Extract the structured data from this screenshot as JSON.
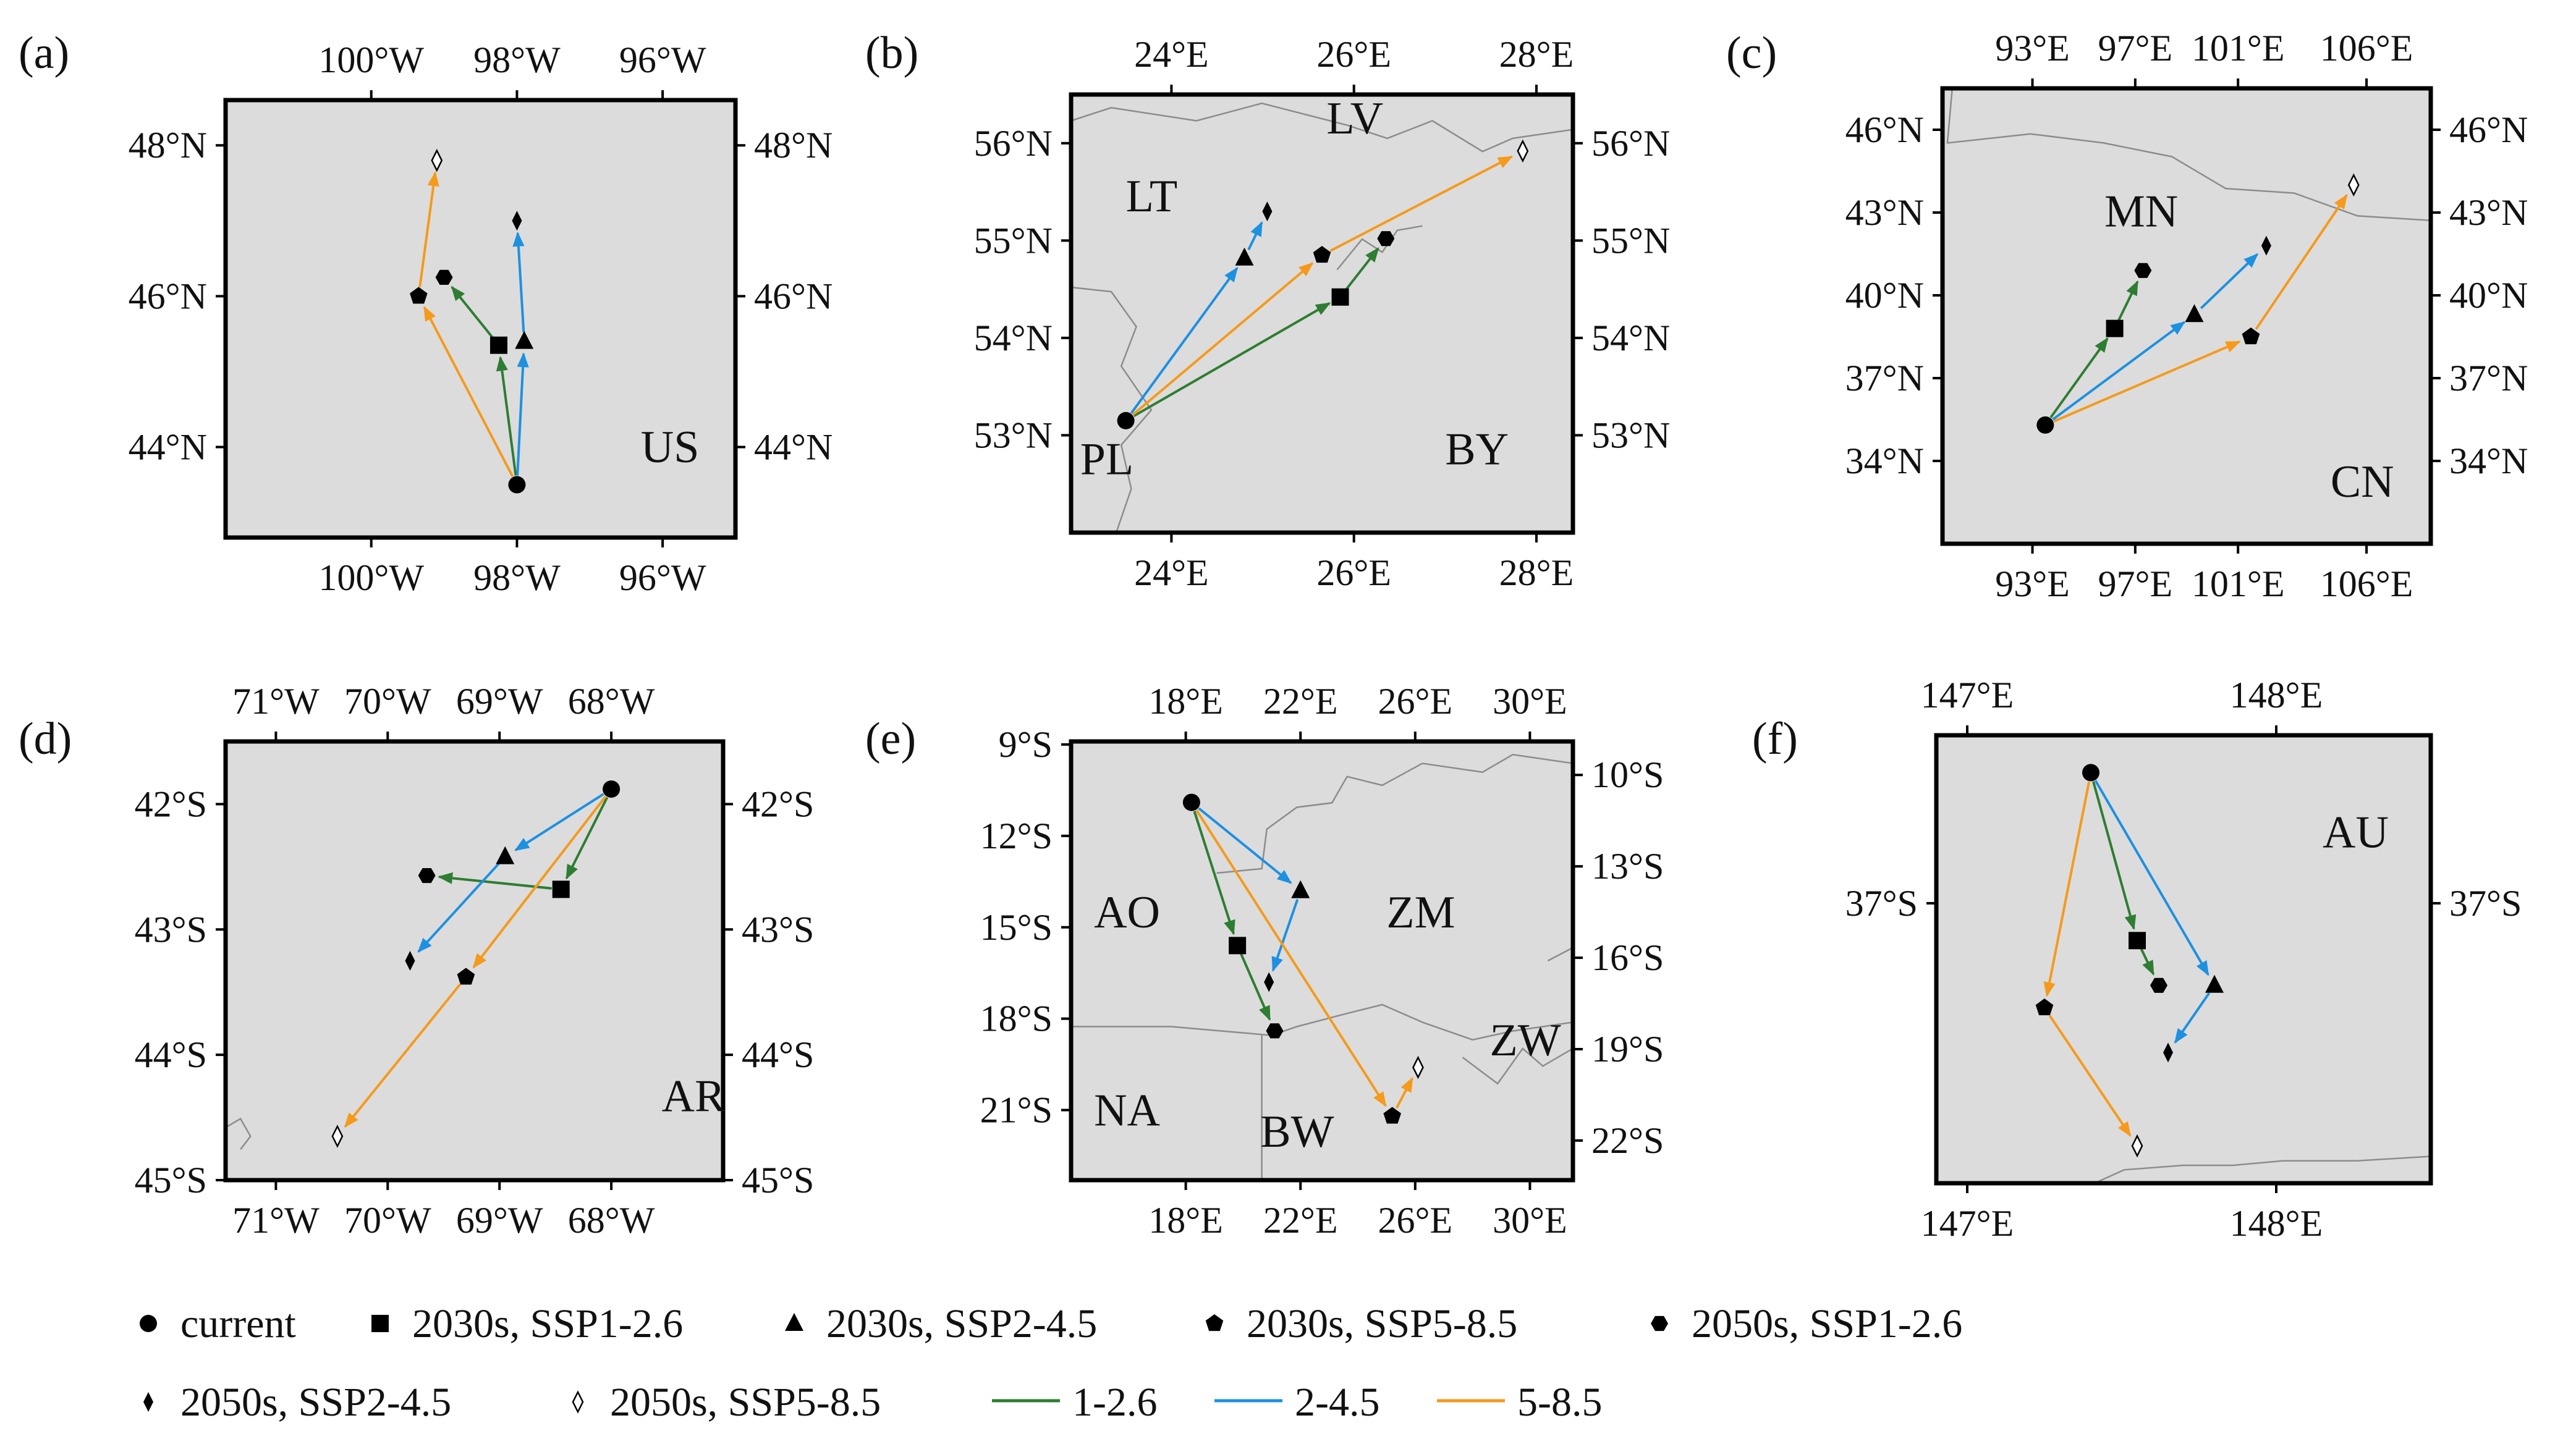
{
  "legend": {
    "items": [
      {
        "label": "current",
        "marker": "circle"
      },
      {
        "label": "2030s, SSP1-2.6",
        "marker": "square"
      },
      {
        "label": "2030s, SSP2-4.5",
        "marker": "triangle"
      },
      {
        "label": "2030s, SSP5-8.5",
        "marker": "pentagon"
      },
      {
        "label": "2050s, SSP1-2.6",
        "marker": "hexagon"
      },
      {
        "label": "2050s, SSP2-4.5",
        "marker": "thin-diamond"
      },
      {
        "label": "2050s, SSP5-8.5",
        "marker": "open-diamond"
      }
    ],
    "lines": [
      {
        "label": "1-2.6",
        "color": "#2e7d32"
      },
      {
        "label": "2-4.5",
        "color": "#1e90e0"
      },
      {
        "label": "5-8.5",
        "color": "#f59a1b"
      }
    ]
  },
  "chart_data": [
    {
      "type": "scatter",
      "panel": "(a)",
      "region": "US",
      "xlim": [
        -102,
        -95
      ],
      "ylim": [
        42.8,
        48.6
      ],
      "xticks": [
        -100,
        -98,
        -96
      ],
      "xtick_labels": [
        "100°W",
        "98°W",
        "96°W"
      ],
      "yticks": [
        44,
        46,
        48
      ],
      "ytick_labels": [
        "44°N",
        "46°N",
        "48°N"
      ],
      "country_labels": [
        {
          "text": "US",
          "x": -96.3,
          "y": 43.8
        }
      ],
      "points": {
        "current": [
          -98,
          43.5
        ],
        "2030s_ssp126": [
          -98.25,
          45.35
        ],
        "2030s_ssp245": [
          -97.9,
          45.4
        ],
        "2030s_ssp585": [
          -99.35,
          46.0
        ],
        "2050s_ssp126": [
          -99.0,
          46.25
        ],
        "2050s_ssp245": [
          -98.0,
          47.0
        ],
        "2050s_ssp585": [
          -99.1,
          47.8
        ]
      }
    },
    {
      "type": "scatter",
      "panel": "(b)",
      "region": "BY",
      "xlim": [
        22.9,
        28.4
      ],
      "ylim": [
        52.0,
        56.5
      ],
      "xticks": [
        24,
        26,
        28
      ],
      "xtick_labels": [
        "24°E",
        "26°E",
        "28°E"
      ],
      "yticks": [
        53,
        54,
        55,
        56
      ],
      "ytick_labels": [
        "53°N",
        "54°N",
        "55°N",
        "56°N"
      ],
      "country_labels": [
        {
          "text": "LV",
          "x": 25.7,
          "y": 56.1
        },
        {
          "text": "LT",
          "x": 23.5,
          "y": 55.3
        },
        {
          "text": "PL",
          "x": 23.0,
          "y": 52.6
        },
        {
          "text": "BY",
          "x": 27.0,
          "y": 52.7
        }
      ],
      "points": {
        "current": [
          23.5,
          53.15
        ],
        "2030s_ssp126": [
          25.85,
          54.42
        ],
        "2030s_ssp245": [
          24.8,
          54.82
        ],
        "2030s_ssp585": [
          25.65,
          54.85
        ],
        "2050s_ssp126": [
          26.35,
          55.02
        ],
        "2050s_ssp245": [
          25.05,
          55.3
        ],
        "2050s_ssp585": [
          27.85,
          55.92
        ]
      }
    },
    {
      "type": "scatter",
      "panel": "(c)",
      "region": "CN",
      "xlim": [
        89.5,
        108.5
      ],
      "ylim": [
        31.0,
        47.5
      ],
      "xticks": [
        93,
        97,
        101,
        106
      ],
      "xtick_labels": [
        "93°E",
        "97°E",
        "101°E",
        "106°E"
      ],
      "yticks": [
        34,
        37,
        40,
        43,
        46
      ],
      "ytick_labels": [
        "34°N",
        "37°N",
        "40°N",
        "43°N",
        "46°N"
      ],
      "country_labels": [
        {
          "text": "MN",
          "x": 95.8,
          "y": 42.5
        },
        {
          "text": "CN",
          "x": 104.6,
          "y": 32.7
        }
      ],
      "points": {
        "current": [
          93.5,
          35.3
        ],
        "2030s_ssp126": [
          96.2,
          38.8
        ],
        "2030s_ssp245": [
          99.3,
          39.3
        ],
        "2030s_ssp585": [
          101.5,
          38.5
        ],
        "2050s_ssp126": [
          97.3,
          40.9
        ],
        "2050s_ssp245": [
          102.1,
          41.8
        ],
        "2050s_ssp585": [
          105.5,
          44.0
        ]
      }
    },
    {
      "type": "scatter",
      "panel": "(d)",
      "region": "AR",
      "xlim": [
        -71.45,
        -67.0
      ],
      "ylim": [
        -45.0,
        -41.5
      ],
      "xticks": [
        -71,
        -70,
        -69,
        -68
      ],
      "xtick_labels": [
        "71°W",
        "70°W",
        "69°W",
        "68°W"
      ],
      "yticks": [
        -45,
        -44,
        -43,
        -42
      ],
      "ytick_labels": [
        "45°S",
        "44°S",
        "43°S",
        "42°S"
      ],
      "country_labels": [
        {
          "text": "AR",
          "x": -67.55,
          "y": -44.45
        }
      ],
      "points": {
        "current": [
          -68.0,
          -41.88
        ],
        "2030s_ssp126": [
          -68.45,
          -42.68
        ],
        "2030s_ssp245": [
          -68.95,
          -42.42
        ],
        "2030s_ssp585": [
          -69.3,
          -43.38
        ],
        "2050s_ssp126": [
          -69.65,
          -42.57
        ],
        "2050s_ssp245": [
          -69.8,
          -43.25
        ],
        "2050s_ssp585": [
          -70.45,
          -44.65
        ]
      }
    },
    {
      "type": "scatter",
      "panel": "(e)",
      "region": "ZM",
      "xlim": [
        14.0,
        31.5
      ],
      "ylim": [
        -23.3,
        -8.9
      ],
      "xticks": [
        18,
        22,
        26,
        30
      ],
      "xtick_labels": [
        "18°E",
        "22°E",
        "26°E",
        "30°E"
      ],
      "yticks": [
        -21,
        -18,
        -15,
        -12,
        -9
      ],
      "ytick_labels": [
        "21°S",
        "18°S",
        "15°S",
        "12°S",
        "9°S"
      ],
      "yticks_right": [
        -22,
        -19,
        -16,
        -13,
        -10
      ],
      "ytick_labels_right": [
        "22°S",
        "19°S",
        "16°S",
        "13°S",
        "10°S"
      ],
      "country_labels": [
        {
          "text": "AO",
          "x": 14.8,
          "y": -15.0
        },
        {
          "text": "ZM",
          "x": 25.0,
          "y": -15.0
        },
        {
          "text": "ZW",
          "x": 28.6,
          "y": -19.2
        },
        {
          "text": "NA",
          "x": 14.8,
          "y": -21.5
        },
        {
          "text": "BW",
          "x": 20.6,
          "y": -22.2
        }
      ],
      "points": {
        "current": [
          18.2,
          -10.9
        ],
        "2030s_ssp126": [
          19.8,
          -15.6
        ],
        "2030s_ssp245": [
          22.0,
          -13.8
        ],
        "2030s_ssp585": [
          25.2,
          -21.2
        ],
        "2050s_ssp126": [
          21.1,
          -18.4
        ],
        "2050s_ssp245": [
          20.9,
          -16.8
        ],
        "2050s_ssp585": [
          26.1,
          -19.6
        ]
      }
    },
    {
      "type": "scatter",
      "panel": "(f)",
      "region": "AU",
      "xlim": [
        146.9,
        148.5
      ],
      "ylim": [
        -37.75,
        -36.55
      ],
      "xticks": [
        147,
        148
      ],
      "xtick_labels": [
        "147°E",
        "148°E"
      ],
      "yticks": [
        -37
      ],
      "ytick_labels": [
        "37°S"
      ],
      "country_labels": [
        {
          "text": "AU",
          "x": 148.15,
          "y": -36.85
        }
      ],
      "points": {
        "current": [
          147.4,
          -36.65
        ],
        "2030s_ssp126": [
          147.55,
          -37.1
        ],
        "2030s_ssp245": [
          147.8,
          -37.22
        ],
        "2030s_ssp585": [
          147.25,
          -37.28
        ],
        "2050s_ssp126": [
          147.62,
          -37.22
        ],
        "2050s_ssp245": [
          147.65,
          -37.4
        ],
        "2050s_ssp585": [
          147.55,
          -37.65
        ]
      }
    }
  ]
}
